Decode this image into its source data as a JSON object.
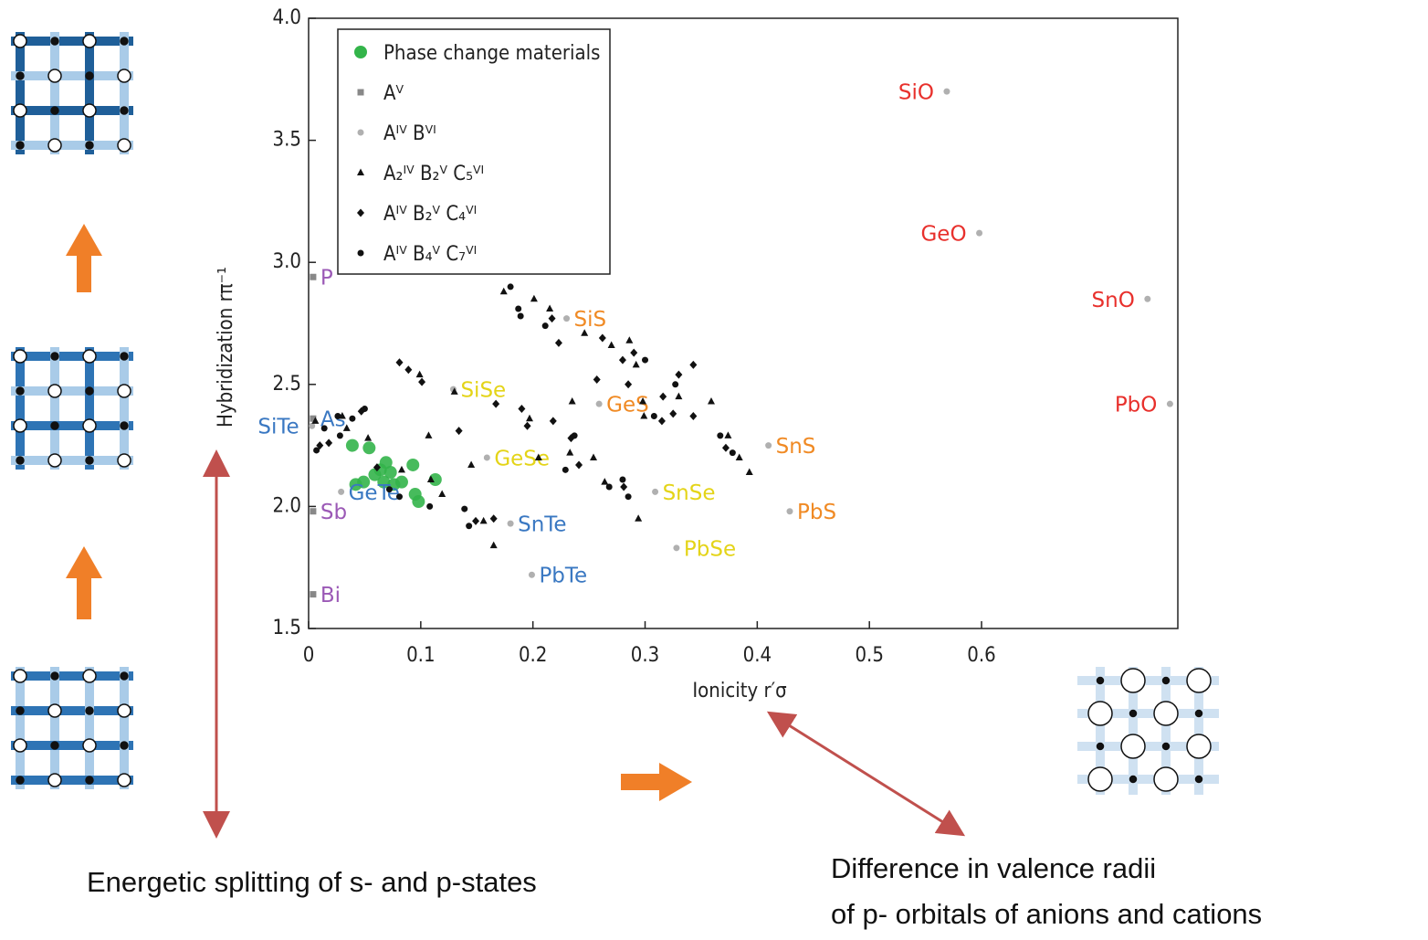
{
  "chart_data": {
    "type": "scatter",
    "xlabel": "Ionicity r′σ",
    "ylabel": "Hybridization rπ⁻¹",
    "xlim": [
      0,
      0.775
    ],
    "ylim": [
      1.5,
      4.0
    ],
    "xticks": [
      0,
      0.1,
      0.2,
      0.3,
      0.4,
      0.5,
      0.6
    ],
    "yticks": [
      {
        "value": 1.5,
        "label": "1.5"
      },
      {
        "value": 2.0,
        "label": "2.0"
      },
      {
        "value": 2.5,
        "label": "2.5"
      },
      {
        "value": 3.0,
        "label": "3.0"
      },
      {
        "value": 3.5,
        "label": "3.5"
      },
      {
        "value": 4.0,
        "label": "4.0"
      }
    ],
    "legend": "upper left",
    "series": [
      {
        "name": "Phase change materials",
        "color": "#33b44a",
        "marker": "circle-large",
        "x": [
          0.039,
          0.054,
          0.069,
          0.093,
          0.042,
          0.049,
          0.059,
          0.064,
          0.073,
          0.083,
          0.095,
          0.098,
          0.113,
          0.076,
          0.067
        ],
        "y": [
          2.25,
          2.24,
          2.18,
          2.17,
          2.09,
          2.1,
          2.13,
          2.15,
          2.14,
          2.1,
          2.05,
          2.02,
          2.11,
          2.09,
          2.1
        ]
      },
      {
        "name": "Aⱽ",
        "color": "#888888",
        "marker": "square",
        "x": [
          0.004,
          0.004,
          0.004,
          0.004
        ],
        "y": [
          2.94,
          2.36,
          1.98,
          1.64
        ],
        "point_labels": [
          "P",
          "As",
          "Sb",
          "Bi"
        ],
        "label_colors": [
          "#9b59b6",
          "#3a78c2",
          "#9b59b6",
          "#9b59b6"
        ]
      },
      {
        "name": "Aᴵⱽ Bⱽᴵ",
        "color": "#b0b0b0",
        "marker": "circle",
        "x": [
          0.569,
          0.598,
          0.748,
          0.768,
          0.23,
          0.259,
          0.129,
          0.159,
          0.41,
          0.309,
          0.429,
          0.18,
          0.328,
          0.199,
          0.029,
          0.003
        ],
        "y": [
          3.7,
          3.12,
          2.85,
          2.42,
          2.77,
          2.42,
          2.48,
          2.2,
          2.25,
          2.06,
          1.98,
          1.93,
          1.83,
          1.72,
          2.06,
          2.33
        ],
        "point_labels": [
          "SiO",
          "GeO",
          "SnO",
          "PbO",
          "SiS",
          "GeS",
          "SiSe",
          "GeSe",
          "SnS",
          "SnSe",
          "PbS",
          "SnTe",
          "PbSe",
          "PbTe",
          "GeTe",
          "SiTe"
        ],
        "label_colors": [
          "#e8302c",
          "#e8302c",
          "#e8302c",
          "#e8302c",
          "#f08a24",
          "#f08a24",
          "#e4d418",
          "#e4d418",
          "#f08a24",
          "#e4d418",
          "#f08a24",
          "#3a78c2",
          "#e4d418",
          "#3a78c2",
          "#3a78c2",
          "#3a78c2"
        ]
      },
      {
        "name": "A₂ᴵⱽ B₂ⱽ C₅ⱽᴵ",
        "color": "#111111",
        "marker": "triangle",
        "x": [
          0.006,
          0.03,
          0.034,
          0.053,
          0.083,
          0.099,
          0.107,
          0.119,
          0.13,
          0.145,
          0.156,
          0.165,
          0.174,
          0.201,
          0.215,
          0.235,
          0.233,
          0.246,
          0.27,
          0.286,
          0.292,
          0.299,
          0.294,
          0.298,
          0.33,
          0.359,
          0.374,
          0.384,
          0.393,
          0.197,
          0.205,
          0.254,
          0.264,
          0.109
        ],
        "y": [
          2.35,
          2.37,
          2.32,
          2.28,
          2.15,
          2.54,
          2.29,
          2.05,
          2.47,
          2.17,
          1.94,
          1.84,
          2.88,
          2.85,
          2.81,
          2.43,
          2.22,
          2.71,
          2.66,
          2.68,
          2.58,
          2.37,
          1.95,
          2.43,
          2.45,
          2.43,
          2.29,
          2.2,
          2.14,
          2.36,
          2.2,
          2.2,
          2.1,
          2.11
        ]
      },
      {
        "name": "Aᴵⱽ B₂ⱽ C₄ⱽᴵ",
        "color": "#111111",
        "marker": "diamond",
        "x": [
          0.01,
          0.018,
          0.047,
          0.061,
          0.081,
          0.089,
          0.101,
          0.134,
          0.149,
          0.165,
          0.167,
          0.19,
          0.195,
          0.218,
          0.223,
          0.234,
          0.257,
          0.281,
          0.285,
          0.316,
          0.325,
          0.33,
          0.343,
          0.372,
          0.217,
          0.262,
          0.29,
          0.241,
          0.28,
          0.315,
          0.343
        ],
        "y": [
          2.25,
          2.26,
          2.39,
          2.16,
          2.59,
          2.56,
          2.51,
          2.31,
          1.94,
          1.95,
          2.42,
          2.4,
          2.33,
          2.35,
          2.67,
          2.28,
          2.52,
          2.08,
          2.5,
          2.45,
          2.38,
          2.54,
          2.37,
          2.24,
          2.77,
          2.69,
          2.63,
          2.17,
          2.6,
          2.35,
          2.58
        ]
      },
      {
        "name": "Aᴵⱽ B₄ⱽ C₇ⱽᴵ",
        "color": "#111111",
        "marker": "circle",
        "x": [
          0.007,
          0.014,
          0.026,
          0.039,
          0.05,
          0.072,
          0.108,
          0.139,
          0.143,
          0.189,
          0.18,
          0.187,
          0.211,
          0.229,
          0.237,
          0.268,
          0.28,
          0.285,
          0.3,
          0.308,
          0.327,
          0.367,
          0.378,
          0.028,
          0.081
        ],
        "y": [
          2.23,
          2.32,
          2.37,
          2.36,
          2.4,
          2.07,
          2.0,
          1.99,
          1.92,
          2.78,
          2.9,
          2.81,
          2.74,
          2.15,
          2.29,
          2.08,
          2.11,
          2.04,
          2.6,
          2.37,
          2.5,
          2.29,
          2.22,
          2.29,
          2.04
        ]
      }
    ]
  },
  "notes": [
    "Energetic splitting of s- and p-states",
    "Difference in valence radii",
    "of p- orbitals of anions and cations"
  ]
}
